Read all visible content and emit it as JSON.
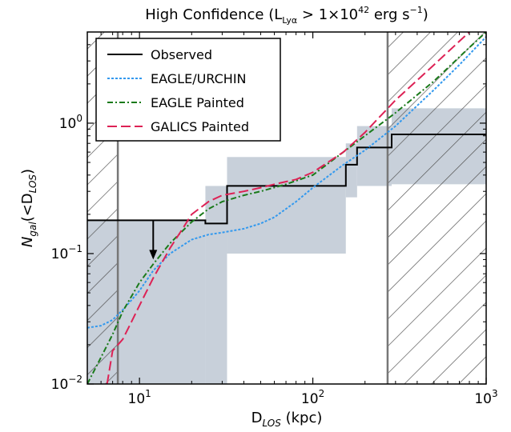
{
  "chart_data": {
    "type": "line",
    "title": "High Confidence (Lₗᵧₐ > 1×10⁴² erg s⁻¹)",
    "title_parts": {
      "prefix": "High Confidence (L",
      "sub": "Lyα",
      "mid": " > 1×10",
      "sup": "42",
      "units": " erg s",
      "units_sup": "−1",
      "suffix": ")"
    },
    "xlabel": {
      "main": "D",
      "sub": "LOS",
      "suffix": " (kpc)"
    },
    "ylabel": {
      "main": "N",
      "sub": "gal",
      "mid": "(<D",
      "sub2": "LOS",
      "suffix": ")"
    },
    "xscale": "log",
    "yscale": "log",
    "xlim": [
      5,
      1000
    ],
    "ylim": [
      0.01,
      5
    ],
    "xticks": [
      {
        "value": 10,
        "base": "10",
        "exp": "1"
      },
      {
        "value": 100,
        "base": "10",
        "exp": "2"
      },
      {
        "value": 1000,
        "base": "10",
        "exp": "3"
      }
    ],
    "yticks": [
      {
        "value": 0.01,
        "base": "10",
        "exp": "−2"
      },
      {
        "value": 0.1,
        "base": "10",
        "exp": "−1"
      },
      {
        "value": 1,
        "base": "10",
        "exp": "0"
      }
    ],
    "excluded_regions": [
      [
        5,
        7.5
      ],
      [
        270,
        1000
      ]
    ],
    "upper_limit": {
      "x_start": 5,
      "x_end": 24,
      "y": 0.18,
      "arrow_x": 12,
      "arrow_to": 0.09
    },
    "shaded_band": [
      {
        "x0": 5,
        "x1": 24,
        "lo": 0.01,
        "hi": 0.18
      },
      {
        "x0": 24,
        "x1": 32,
        "lo": 0.01,
        "hi": 0.33
      },
      {
        "x0": 32,
        "x1": 155,
        "lo": 0.1,
        "hi": 0.55
      },
      {
        "x0": 155,
        "x1": 180,
        "lo": 0.27,
        "hi": 0.7
      },
      {
        "x0": 180,
        "x1": 285,
        "lo": 0.33,
        "hi": 0.95
      },
      {
        "x0": 285,
        "x1": 1000,
        "lo": 0.34,
        "hi": 1.3
      }
    ],
    "series": [
      {
        "name": "Observed",
        "color": "#000000",
        "style": "solid",
        "x": [
          5,
          24,
          24,
          32,
          32,
          155,
          155,
          180,
          180,
          285,
          285,
          1000
        ],
        "y": [
          0.18,
          0.18,
          0.17,
          0.17,
          0.33,
          0.33,
          0.48,
          0.48,
          0.65,
          0.65,
          0.82,
          0.82
        ]
      },
      {
        "name": "EAGLE/URCHIN",
        "color": "#3399ee",
        "style": "dotted",
        "x": [
          5,
          6,
          7,
          8,
          9,
          10,
          12,
          15,
          20,
          25,
          30,
          40,
          50,
          60,
          80,
          100,
          150,
          200,
          300,
          500,
          700,
          1000
        ],
        "y": [
          0.027,
          0.028,
          0.031,
          0.037,
          0.044,
          0.052,
          0.074,
          0.1,
          0.128,
          0.14,
          0.145,
          0.155,
          0.17,
          0.19,
          0.25,
          0.32,
          0.48,
          0.62,
          0.95,
          1.8,
          2.8,
          4.6
        ]
      },
      {
        "name": "EAGLE Painted",
        "color": "#1a7a1a",
        "style": "dashdot",
        "x": [
          5,
          6,
          7,
          8,
          10,
          12,
          15,
          20,
          25,
          30,
          40,
          50,
          70,
          100,
          150,
          200,
          300,
          500,
          800,
          1000
        ],
        "y": [
          0.01,
          0.016,
          0.024,
          0.036,
          0.06,
          0.083,
          0.12,
          0.175,
          0.22,
          0.25,
          0.28,
          0.3,
          0.34,
          0.4,
          0.6,
          0.8,
          1.2,
          2.1,
          3.8,
          5.0
        ]
      },
      {
        "name": "GALICS Painted",
        "color": "#dd2255",
        "style": "dashed",
        "x": [
          6.5,
          7,
          8,
          9,
          10,
          12,
          15,
          18,
          20,
          25,
          30,
          40,
          50,
          60,
          80,
          100,
          150,
          200,
          300,
          500,
          800
        ],
        "y": [
          0.01,
          0.018,
          0.022,
          0.03,
          0.04,
          0.065,
          0.11,
          0.16,
          0.2,
          0.25,
          0.28,
          0.3,
          0.32,
          0.34,
          0.37,
          0.42,
          0.6,
          0.85,
          1.5,
          2.8,
          5.0
        ]
      }
    ],
    "legend_position": "top-left",
    "colors": {
      "band": "#c8d0da",
      "exclusion_border": "#777777"
    }
  }
}
